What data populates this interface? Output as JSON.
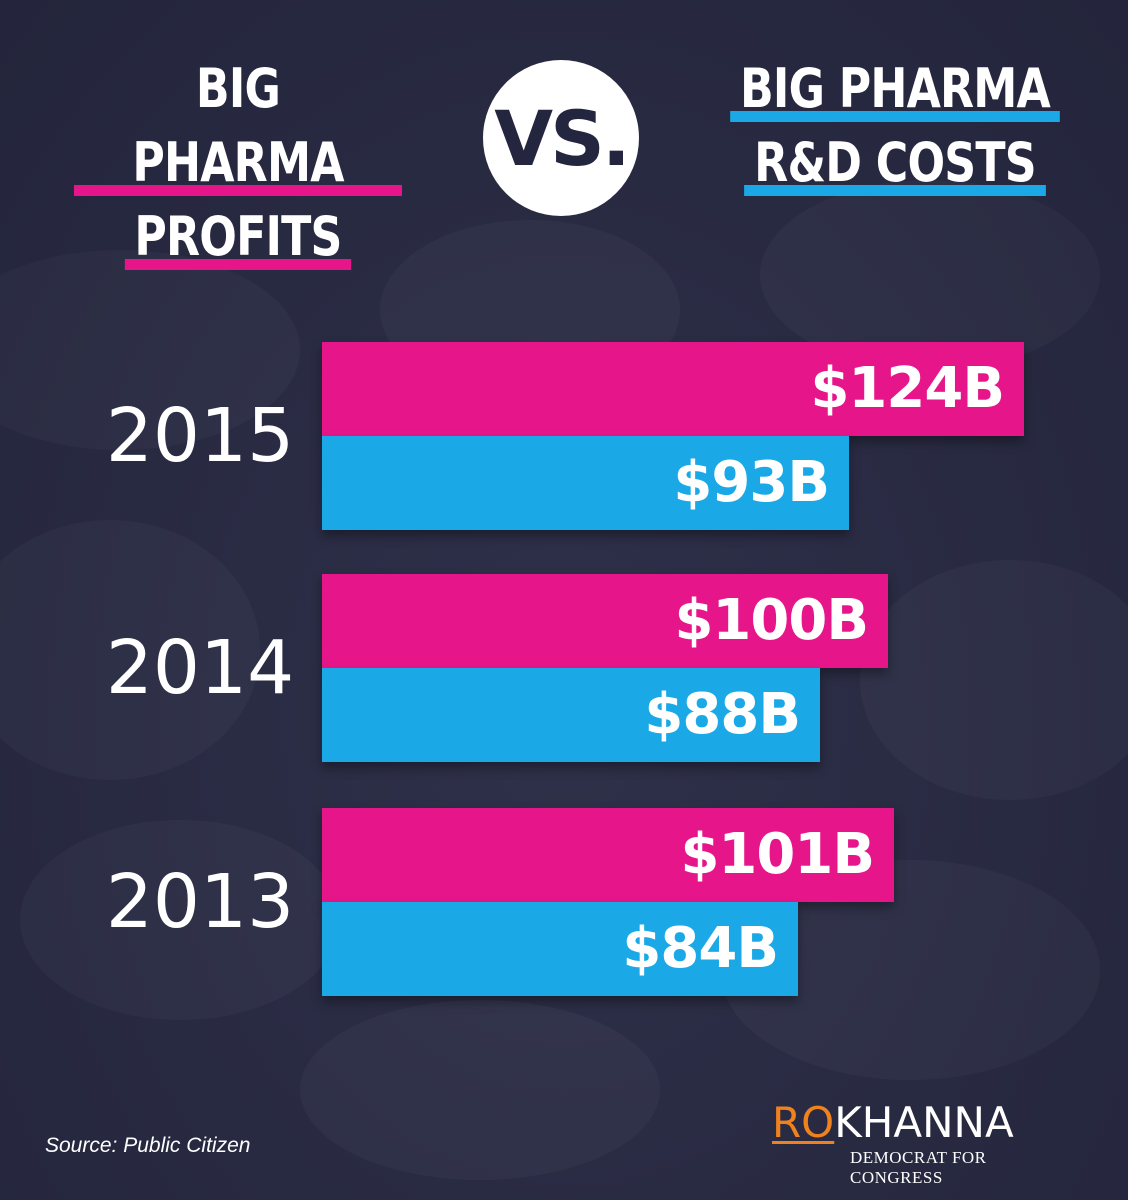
{
  "titles": {
    "left": [
      "BIG PHARMA",
      "PROFITS"
    ],
    "right": [
      "BIG PHARMA",
      "R&D COSTS"
    ],
    "vs": "VS."
  },
  "colors": {
    "profits": "#e6168a",
    "rd_costs": "#1aa9e6",
    "background": "#2a2c45"
  },
  "chart_data": {
    "type": "bar",
    "orientation": "horizontal",
    "categories": [
      "2015",
      "2014",
      "2013"
    ],
    "series": [
      {
        "name": "BIG PHARMA PROFITS",
        "values": [
          124,
          100,
          101
        ],
        "labels": [
          "$124B",
          "$100B",
          "$101B"
        ]
      },
      {
        "name": "BIG PHARMA R&D COSTS",
        "values": [
          93,
          88,
          84
        ],
        "labels": [
          "$93B",
          "$88B",
          "$84B"
        ]
      }
    ],
    "unit": "$B",
    "grid": false
  },
  "footer": {
    "source": "Source: Public Citizen",
    "logo_first": "RO",
    "logo_last": "KHANNA",
    "logo_tagline": "DEMOCRAT FOR CONGRESS"
  }
}
